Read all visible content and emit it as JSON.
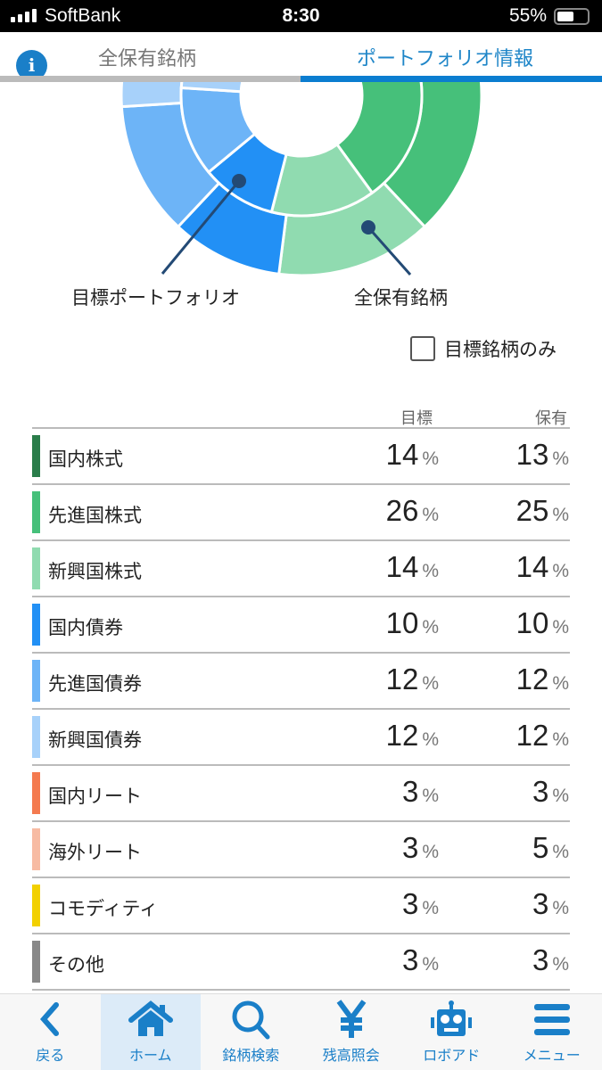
{
  "status": {
    "carrier": "SoftBank",
    "time": "8:30",
    "battery": "55%"
  },
  "tabs": [
    {
      "label": "全保有銘柄",
      "active": false
    },
    {
      "label": "ポートフォリオ情報",
      "active": true
    }
  ],
  "chart_labels": {
    "inner": "目標ポートフォリオ",
    "outer": "全保有銘柄"
  },
  "filter": {
    "label": "目標銘柄のみ",
    "checked": false
  },
  "columns": {
    "target": "目標",
    "holding": "保有"
  },
  "unit": "%",
  "assets": [
    {
      "name": "国内株式",
      "target": 14,
      "holding": 13,
      "color": "#2a7d4a"
    },
    {
      "name": "先進国株式",
      "target": 26,
      "holding": 25,
      "color": "#46c07a"
    },
    {
      "name": "新興国株式",
      "target": 14,
      "holding": 14,
      "color": "#90dbb0"
    },
    {
      "name": "国内債券",
      "target": 10,
      "holding": 10,
      "color": "#2290f5"
    },
    {
      "name": "先進国債券",
      "target": 12,
      "holding": 12,
      "color": "#6db4f7"
    },
    {
      "name": "新興国債券",
      "target": 12,
      "holding": 12,
      "color": "#a7d1fa"
    },
    {
      "name": "国内リート",
      "target": 3,
      "holding": 3,
      "color": "#f47a4f"
    },
    {
      "name": "海外リート",
      "target": 3,
      "holding": 5,
      "color": "#f7bba3"
    },
    {
      "name": "コモディティ",
      "target": 3,
      "holding": 3,
      "color": "#f2d000"
    },
    {
      "name": "その他",
      "target": 3,
      "holding": 3,
      "color": "#888888"
    }
  ],
  "nav": [
    {
      "label": "戻る",
      "icon": "back-icon"
    },
    {
      "label": "ホーム",
      "icon": "home-icon",
      "active": true
    },
    {
      "label": "銘柄検索",
      "icon": "search-icon"
    },
    {
      "label": "残高照会",
      "icon": "yen-icon"
    },
    {
      "label": "ロボアド",
      "icon": "robot-icon"
    },
    {
      "label": "メニュー",
      "icon": "menu-icon"
    }
  ]
}
